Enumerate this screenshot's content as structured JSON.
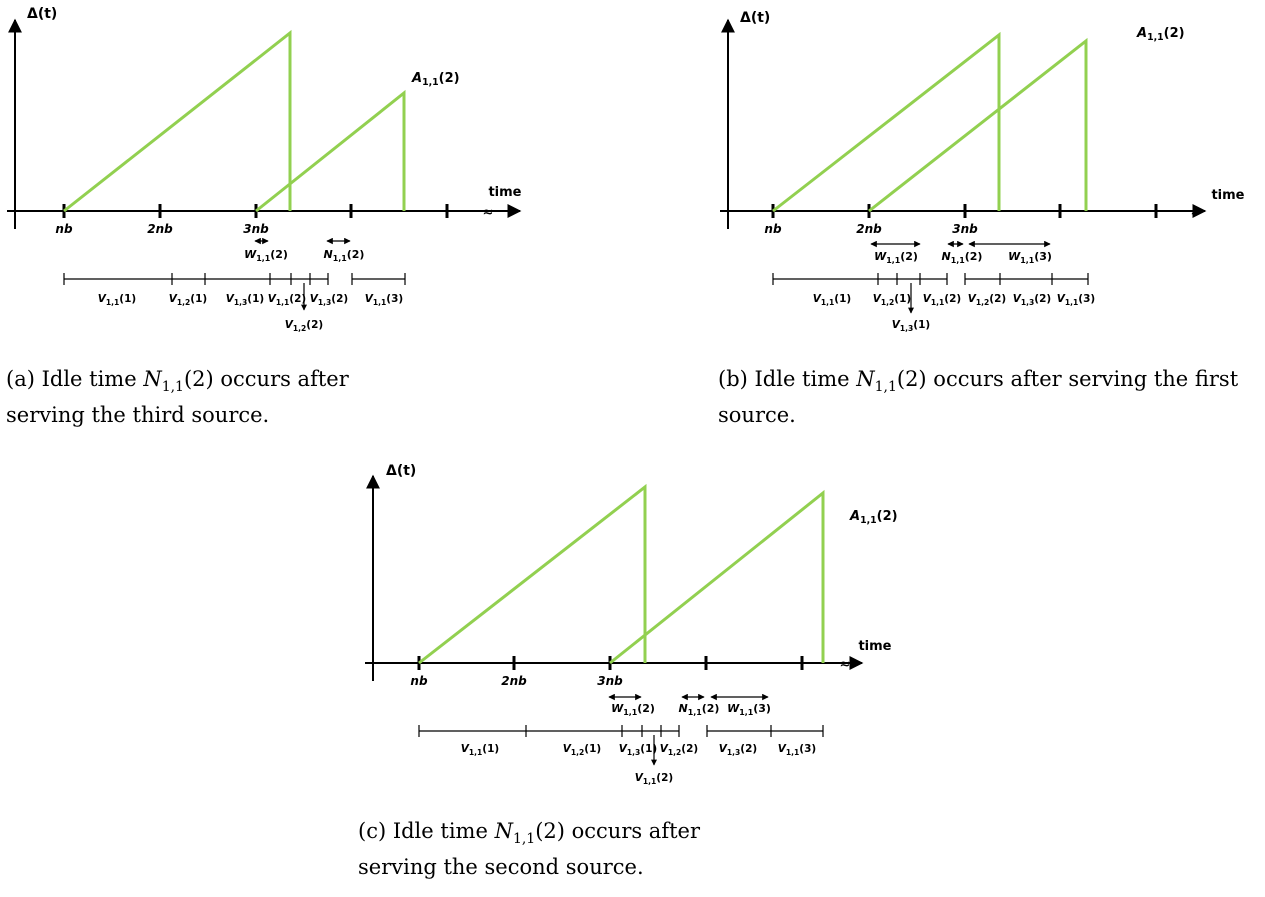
{
  "colors": {
    "sawtooth": "#92d050",
    "axis": "#000000"
  },
  "common": {
    "y_axis_label": "Δ(t)",
    "x_axis_label": "time",
    "break_mark": "≈"
  },
  "panels": [
    {
      "id": "a",
      "ticks": [
        "nb",
        "2nb",
        "3nb",
        "",
        ""
      ],
      "arrival_label": "A1,1(2)",
      "intervals_top": [
        {
          "label": "W1,1(2)"
        },
        {
          "label": "N1,1(2)"
        }
      ],
      "intervals_bottom": [
        "V1,1(1)",
        "V1,2(1)",
        "V1,3(1)",
        "V1,1(2)",
        "V1,3(2)",
        "V1,1(3)"
      ],
      "drop_label": "V1,2(2)",
      "caption": {
        "prefix": "(a)  Idle time ",
        "math": "N",
        "math_sub": "1,1",
        "math_arg": "(2)",
        "suffix": " occurs after serving the third source."
      }
    },
    {
      "id": "b",
      "ticks": [
        "nb",
        "2nb",
        "3nb",
        "",
        ""
      ],
      "arrival_label": "A1,1(2)",
      "intervals_top": [
        {
          "label": "W1,1(2)"
        },
        {
          "label": "N1,1(2)"
        },
        {
          "label": "W1,1(3)"
        }
      ],
      "intervals_bottom": [
        "V1,1(1)",
        "V1,2(1)",
        "V1,1(2)",
        "V1,2(2)",
        "V1,3(2)",
        "V1,1(3)"
      ],
      "drop_label": "V1,3(1)",
      "caption": {
        "prefix": "(b)  Idle time ",
        "math": "N",
        "math_sub": "1,1",
        "math_arg": "(2)",
        "suffix": " occurs after serving the first source."
      }
    },
    {
      "id": "c",
      "ticks": [
        "nb",
        "2nb",
        "3nb",
        "",
        ""
      ],
      "arrival_label": "A1,1(2)",
      "intervals_top": [
        {
          "label": "W1,1(2)"
        },
        {
          "label": "N1,1(2)"
        },
        {
          "label": "W1,1(3)"
        }
      ],
      "intervals_bottom": [
        "V1,1(1)",
        "V1,2(1)",
        "V1,3(1)",
        "V1,2(2)",
        "V1,3(2)",
        "V1,1(3)"
      ],
      "drop_label": "V1,1(2)",
      "caption": {
        "prefix": "(c)   Idle time ",
        "math": "N",
        "math_sub": "1,1",
        "math_arg": "(2)",
        "suffix": " occurs after serving the second source."
      }
    }
  ]
}
